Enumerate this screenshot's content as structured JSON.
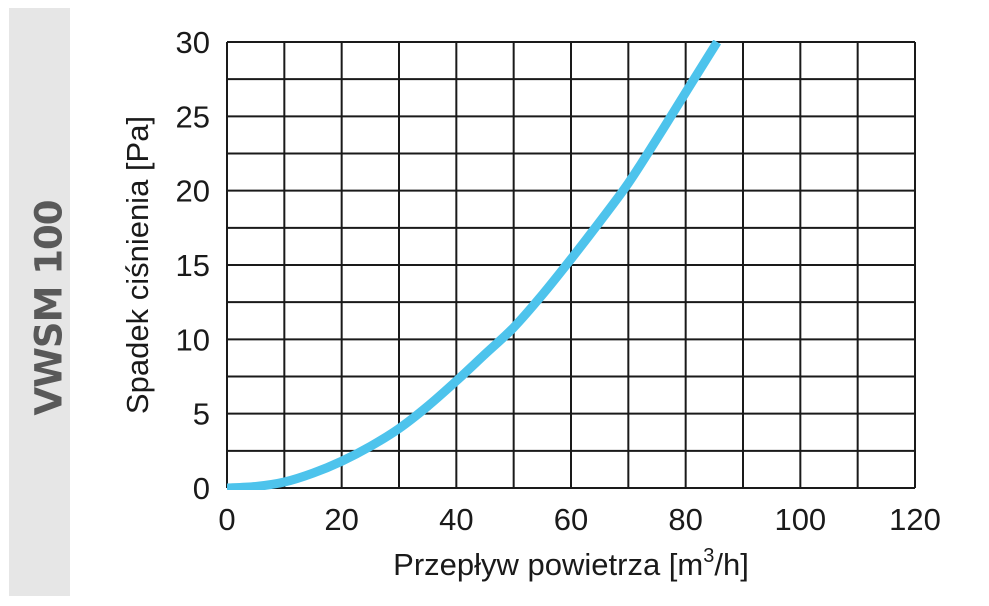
{
  "side_label": "VWSM 100",
  "chart_data": {
    "type": "line",
    "title": "",
    "xlabel": "Przepływ powietrza [m",
    "xlabel_superscript": "3",
    "xlabel_suffix": "/h]",
    "ylabel": "Spadek ciśnienia [Pa]",
    "xlim": [
      0,
      120
    ],
    "ylim": [
      0,
      30
    ],
    "x_ticks": [
      0,
      20,
      40,
      60,
      80,
      100,
      120
    ],
    "y_ticks": [
      0,
      5,
      10,
      15,
      20,
      25,
      30
    ],
    "x_grid_step": 10,
    "y_grid_step": 2.5,
    "grid": true,
    "line_color": "#4dc3ec",
    "grid_color": "#1a1a1a",
    "series": [
      {
        "x": [
          0,
          5,
          10,
          15,
          20,
          25,
          30,
          35,
          40,
          45,
          50,
          55,
          60,
          65,
          70,
          75,
          80,
          85.5
        ],
        "values": [
          0,
          0.1,
          0.4,
          1.0,
          1.8,
          2.8,
          4.0,
          5.5,
          7.2,
          9.0,
          10.8,
          13.0,
          15.4,
          17.9,
          20.5,
          23.5,
          26.6,
          30
        ]
      }
    ]
  }
}
